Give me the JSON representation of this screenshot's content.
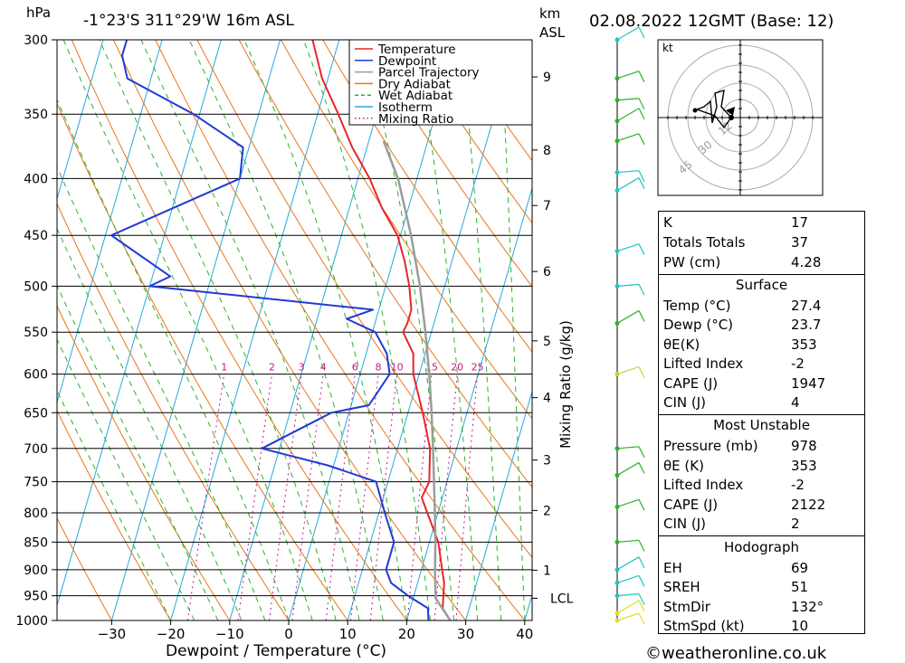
{
  "header": {
    "pressure_unit": "hPa",
    "location": "-1°23'S  311°29'W  16m  ASL",
    "km_label": "km",
    "asl_label": "ASL",
    "datetime": "02.08.2022  12GMT  (Base: 12)"
  },
  "chart_data": {
    "type": "line",
    "title": "",
    "xlabel": "Dewpoint / Temperature (°C)",
    "ylabel": "hPa",
    "x_ticks": [
      -30,
      -20,
      -10,
      0,
      10,
      20,
      30,
      40
    ],
    "pressure_levels": [
      300,
      350,
      400,
      450,
      500,
      550,
      600,
      650,
      700,
      750,
      800,
      850,
      900,
      950,
      1000
    ],
    "km_ticks": [
      {
        "label": "9",
        "p": 324
      },
      {
        "label": "8",
        "p": 377
      },
      {
        "label": "7",
        "p": 423
      },
      {
        "label": "6",
        "p": 485
      },
      {
        "label": "5",
        "p": 560
      },
      {
        "label": "4",
        "p": 630
      },
      {
        "label": "3",
        "p": 717
      },
      {
        "label": "2",
        "p": 796
      },
      {
        "label": "1",
        "p": 901
      },
      {
        "label": "LCL",
        "p": 955
      }
    ],
    "mixing_ratio_label": "Mixing Ratio (g/kg)",
    "mixing_ratio_values": [
      "1",
      "2",
      "3",
      "4",
      "6",
      "8",
      "10",
      "15",
      "20",
      "25"
    ],
    "legend": {
      "placement": "top-right",
      "entries": [
        {
          "name": "Temperature",
          "color": "#e8262a",
          "style": "solid"
        },
        {
          "name": "Dewpoint",
          "color": "#1f3ad8",
          "style": "solid"
        },
        {
          "name": "Parcel Trajectory",
          "color": "#9c9c9c",
          "style": "solid"
        },
        {
          "name": "Dry Adiabat",
          "color": "#e8761a",
          "style": "solid"
        },
        {
          "name": "Wet Adiabat",
          "color": "#2ab42a",
          "style": "dashed"
        },
        {
          "name": "Isotherm",
          "color": "#28a8dc",
          "style": "solid"
        },
        {
          "name": "Mixing Ratio",
          "color": "#c8148c",
          "style": "dotted"
        }
      ]
    },
    "series": [
      {
        "name": "Temperature",
        "points": [
          {
            "p": 1000,
            "t": 27.4
          },
          {
            "p": 975,
            "t": 25.5
          },
          {
            "p": 950,
            "t": 25.0
          },
          {
            "p": 925,
            "t": 24.5
          },
          {
            "p": 900,
            "t": 23.5
          },
          {
            "p": 850,
            "t": 21.5
          },
          {
            "p": 800,
            "t": 18.2
          },
          {
            "p": 775,
            "t": 16.5
          },
          {
            "p": 750,
            "t": 17.0
          },
          {
            "p": 700,
            "t": 15.5
          },
          {
            "p": 650,
            "t": 12.5
          },
          {
            "p": 600,
            "t": 9.0
          },
          {
            "p": 575,
            "t": 8.0
          },
          {
            "p": 550,
            "t": 5.2
          },
          {
            "p": 540,
            "t": 5.5
          },
          {
            "p": 525,
            "t": 5.5
          },
          {
            "p": 500,
            "t": 4.0
          },
          {
            "p": 475,
            "t": 2.0
          },
          {
            "p": 450,
            "t": -0.5
          },
          {
            "p": 425,
            "t": -4.5
          },
          {
            "p": 400,
            "t": -8.0
          },
          {
            "p": 375,
            "t": -12.5
          },
          {
            "p": 350,
            "t": -16.5
          },
          {
            "p": 325,
            "t": -21.0
          },
          {
            "p": 300,
            "t": -24.5
          }
        ]
      },
      {
        "name": "Dewpoint",
        "points": [
          {
            "p": 1000,
            "t": 23.7
          },
          {
            "p": 975,
            "t": 23.0
          },
          {
            "p": 950,
            "t": 19.0
          },
          {
            "p": 925,
            "t": 15.5
          },
          {
            "p": 900,
            "t": 14.0
          },
          {
            "p": 850,
            "t": 14.0
          },
          {
            "p": 800,
            "t": 11.0
          },
          {
            "p": 750,
            "t": 8.0
          },
          {
            "p": 725,
            "t": -1.0
          },
          {
            "p": 700,
            "t": -13.0
          },
          {
            "p": 650,
            "t": -3.0
          },
          {
            "p": 640,
            "t": 3.0
          },
          {
            "p": 600,
            "t": 5.0
          },
          {
            "p": 575,
            "t": 3.5
          },
          {
            "p": 550,
            "t": 0.5
          },
          {
            "p": 535,
            "t": -5.0
          },
          {
            "p": 525,
            "t": -1.0
          },
          {
            "p": 500,
            "t": -40.0
          },
          {
            "p": 490,
            "t": -37.0
          },
          {
            "p": 450,
            "t": -49.0
          },
          {
            "p": 400,
            "t": -30.0
          },
          {
            "p": 375,
            "t": -31.0
          },
          {
            "p": 350,
            "t": -41.0
          },
          {
            "p": 325,
            "t": -54.0
          },
          {
            "p": 310,
            "t": -56.0
          },
          {
            "p": 300,
            "t": -56.0
          }
        ]
      },
      {
        "name": "Parcel Trajectory",
        "points": [
          {
            "p": 1000,
            "t": 27.4
          },
          {
            "p": 955,
            "t": 23.8
          },
          {
            "p": 900,
            "t": 22.3
          },
          {
            "p": 850,
            "t": 21.0
          },
          {
            "p": 800,
            "t": 19.5
          },
          {
            "p": 750,
            "t": 17.8
          },
          {
            "p": 700,
            "t": 16.0
          },
          {
            "p": 650,
            "t": 14.0
          },
          {
            "p": 600,
            "t": 11.7
          },
          {
            "p": 550,
            "t": 9.0
          },
          {
            "p": 500,
            "t": 5.8
          },
          {
            "p": 450,
            "t": 1.8
          },
          {
            "p": 400,
            "t": -3.2
          },
          {
            "p": 370,
            "t": -7.5
          }
        ]
      }
    ],
    "wind_profile": [
      {
        "p": 300,
        "color": "#21c3c3"
      },
      {
        "p": 325,
        "color": "#28b428"
      },
      {
        "p": 340,
        "color": "#28b428"
      },
      {
        "p": 355,
        "color": "#28b428"
      },
      {
        "p": 370,
        "color": "#28b428"
      },
      {
        "p": 395,
        "color": "#21c3c3"
      },
      {
        "p": 410,
        "color": "#21c3c3"
      },
      {
        "p": 465,
        "color": "#21c3c3"
      },
      {
        "p": 500,
        "color": "#21c3c3"
      },
      {
        "p": 540,
        "color": "#28b428"
      },
      {
        "p": 600,
        "color": "#b4dc3c"
      },
      {
        "p": 700,
        "color": "#28b428"
      },
      {
        "p": 740,
        "color": "#28b428"
      },
      {
        "p": 790,
        "color": "#28b428"
      },
      {
        "p": 850,
        "color": "#28b428"
      },
      {
        "p": 900,
        "color": "#21c3c3"
      },
      {
        "p": 925,
        "color": "#21c3c3"
      },
      {
        "p": 950,
        "color": "#21c3c3"
      },
      {
        "p": 985,
        "color": "#e6dc28"
      },
      {
        "p": 1000,
        "color": "#e6dc28"
      }
    ],
    "hodograph": {
      "unit_label": "kt",
      "ring_labels": [
        "12",
        "30",
        "45"
      ]
    }
  },
  "indices": {
    "rows": [
      {
        "label": "K",
        "value": "17"
      },
      {
        "label": "Totals Totals",
        "value": "37"
      },
      {
        "label": "PW (cm)",
        "value": "4.28"
      }
    ]
  },
  "surface": {
    "header": "Surface",
    "rows": [
      {
        "label": "Temp (°C)",
        "value": "27.4"
      },
      {
        "label": "Dewp (°C)",
        "value": "23.7"
      },
      {
        "label": "θE(K)",
        "value": "353"
      },
      {
        "label": "Lifted Index",
        "value": "-2"
      },
      {
        "label": "CAPE (J)",
        "value": "1947"
      },
      {
        "label": "CIN (J)",
        "value": "4"
      }
    ]
  },
  "most_unstable": {
    "header": "Most Unstable",
    "rows": [
      {
        "label": "Pressure (mb)",
        "value": "978"
      },
      {
        "label": "θE (K)",
        "value": "353"
      },
      {
        "label": "Lifted Index",
        "value": "-2"
      },
      {
        "label": "CAPE (J)",
        "value": "2122"
      },
      {
        "label": "CIN (J)",
        "value": "2"
      }
    ]
  },
  "hodograph_stats": {
    "header": "Hodograph",
    "rows": [
      {
        "label": "EH",
        "value": "69"
      },
      {
        "label": "SREH",
        "value": "51"
      },
      {
        "label": "StmDir",
        "value": "132°"
      },
      {
        "label": "StmSpd (kt)",
        "value": "10"
      }
    ]
  },
  "footer": {
    "copyright": "©weatheronline.co.uk"
  }
}
